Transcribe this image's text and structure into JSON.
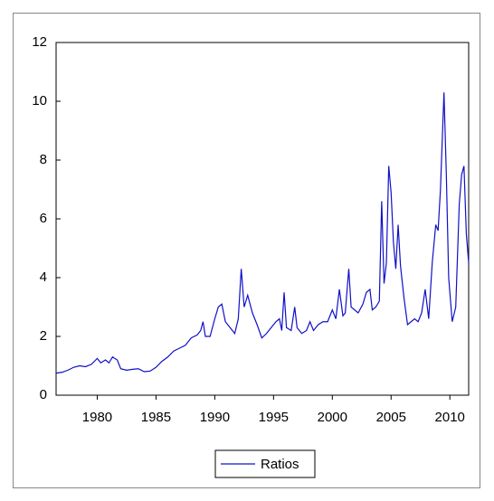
{
  "chart_data": {
    "type": "line",
    "x": [
      1976.5,
      1977,
      1977.5,
      1978,
      1978.5,
      1979,
      1979.5,
      1980,
      1980.3,
      1980.7,
      1981,
      1981.3,
      1981.7,
      1982,
      1982.5,
      1983,
      1983.5,
      1984,
      1984.5,
      1985,
      1985.5,
      1986,
      1986.5,
      1987,
      1987.5,
      1988,
      1988.5,
      1988.8,
      1989,
      1989.2,
      1989.6,
      1990,
      1990.3,
      1990.6,
      1990.9,
      1991.3,
      1991.7,
      1992,
      1992.25,
      1992.5,
      1992.8,
      1993.2,
      1993.6,
      1994,
      1994.4,
      1994.8,
      1995.2,
      1995.5,
      1995.7,
      1995.9,
      1996.1,
      1996.5,
      1996.8,
      1997,
      1997.4,
      1997.8,
      1998.1,
      1998.4,
      1998.8,
      1999.2,
      1999.6,
      2000,
      2000.3,
      2000.6,
      2000.9,
      2001.1,
      2001.4,
      2001.6,
      2001.9,
      2002.2,
      2002.6,
      2002.9,
      2003.2,
      2003.4,
      2003.7,
      2004,
      2004.1,
      2004.2,
      2004.4,
      2004.6,
      2004.8,
      2005,
      2005.2,
      2005.4,
      2005.6,
      2005.8,
      2006.1,
      2006.4,
      2006.7,
      2007,
      2007.3,
      2007.6,
      2007.9,
      2008.2,
      2008.5,
      2008.8,
      2009,
      2009.2,
      2009.5,
      2009.7,
      2009.9,
      2010.2,
      2010.5,
      2010.8,
      2011,
      2011.2,
      2011.4,
      2011.6
    ],
    "series": [
      {
        "name": "Ratios",
        "color": "#1010c8",
        "values": [
          0.75,
          0.78,
          0.85,
          0.95,
          1.0,
          0.97,
          1.05,
          1.25,
          1.1,
          1.2,
          1.1,
          1.3,
          1.2,
          0.9,
          0.85,
          0.88,
          0.9,
          0.8,
          0.82,
          0.95,
          1.15,
          1.3,
          1.5,
          1.6,
          1.7,
          1.95,
          2.05,
          2.2,
          2.5,
          2.0,
          2.0,
          2.6,
          3.0,
          3.1,
          2.5,
          2.3,
          2.1,
          2.6,
          4.3,
          3.0,
          3.4,
          2.8,
          2.4,
          1.95,
          2.1,
          2.3,
          2.5,
          2.6,
          2.2,
          3.5,
          2.3,
          2.2,
          3.0,
          2.3,
          2.1,
          2.2,
          2.5,
          2.2,
          2.4,
          2.5,
          2.5,
          2.9,
          2.6,
          3.6,
          2.7,
          2.8,
          4.3,
          3.0,
          2.9,
          2.8,
          3.1,
          3.5,
          3.6,
          2.9,
          3.0,
          3.2,
          4.9,
          6.6,
          3.8,
          4.5,
          7.8,
          6.9,
          5.2,
          4.3,
          5.8,
          4.4,
          3.3,
          2.4,
          2.5,
          2.6,
          2.5,
          2.8,
          3.6,
          2.6,
          4.5,
          5.8,
          5.6,
          7.0,
          10.3,
          7.5,
          4.0,
          2.5,
          3.0,
          6.5,
          7.5,
          7.8,
          5.5,
          4.5
        ]
      }
    ],
    "xlim": [
      1976.5,
      2011.6
    ],
    "xticks": [
      1980,
      1985,
      1990,
      1995,
      2000,
      2005,
      2010
    ],
    "ylim": [
      0,
      12
    ],
    "yticks": [
      0,
      2,
      4,
      6,
      8,
      10,
      12
    ],
    "legend": "bottom"
  }
}
